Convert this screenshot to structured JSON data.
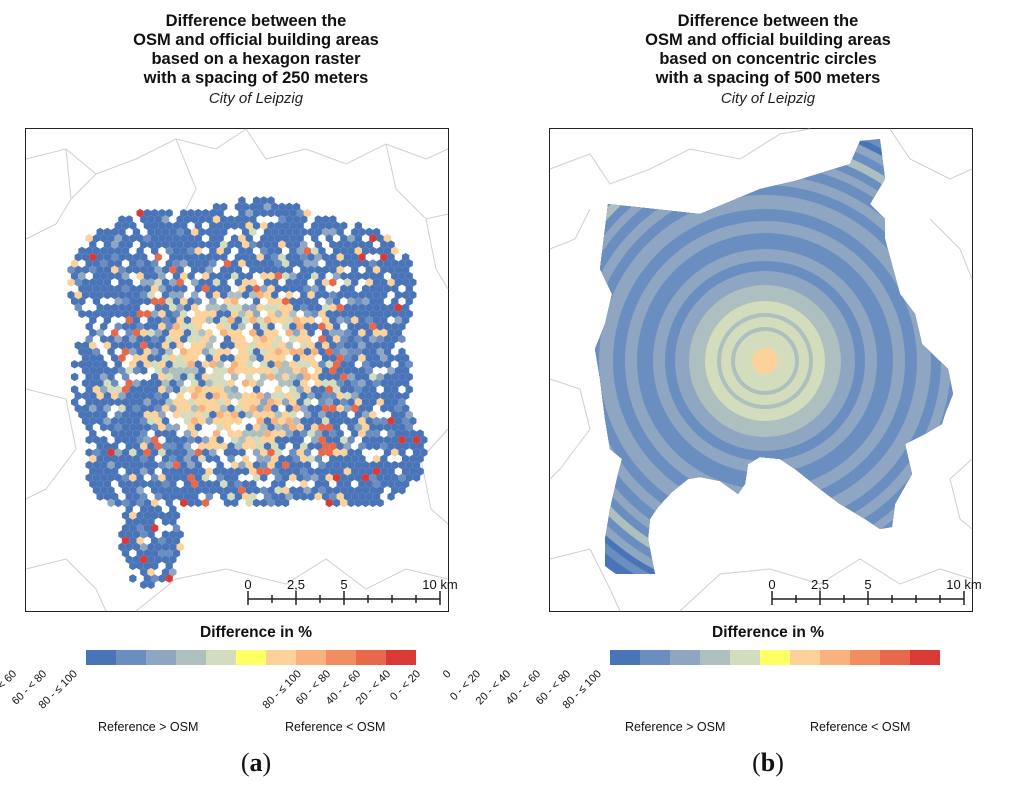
{
  "panels": [
    {
      "id": "a",
      "title_lines": [
        "Difference between the",
        "OSM and official building areas",
        "based on a hexagon raster",
        "with a spacing of 250 meters"
      ],
      "subtitle": "City of Leipzig",
      "label": "a"
    },
    {
      "id": "b",
      "title_lines": [
        "Difference between the",
        "OSM and official building areas",
        "based on concentric circles",
        "with a spacing of 500 meters"
      ],
      "subtitle": "City of Leipzig",
      "label": "b"
    }
  ],
  "scalebar": {
    "labels": [
      "0",
      "2,5",
      "5",
      "10 km"
    ],
    "values_km": [
      0,
      2.5,
      5,
      10
    ]
  },
  "legend": {
    "title": "Difference in %",
    "classes": [
      {
        "label": "80 - ≤ 100",
        "color": "#4a74b8"
      },
      {
        "label": "60 - < 80",
        "color": "#6b8ec0"
      },
      {
        "label": "40 - < 60",
        "color": "#8ea6c2"
      },
      {
        "label": "20 - < 40",
        "color": "#adbfbe"
      },
      {
        "label": "0 - < 20",
        "color": "#d3dcbd"
      },
      {
        "label": "0",
        "color": "#ffff66"
      },
      {
        "label": "0 - < 20",
        "color": "#fcd29a"
      },
      {
        "label": "20 - < 40",
        "color": "#f7b27e"
      },
      {
        "label": "40 - < 60",
        "color": "#f08e62"
      },
      {
        "label": "60 - < 80",
        "color": "#e8684c"
      },
      {
        "label": "80 - ≤ 100",
        "color": "#d93a36"
      }
    ],
    "left_label": "Reference > OSM",
    "right_label": "Reference < OSM"
  },
  "colors": {
    "boundary": "#cfcfcf",
    "frame": "#222222",
    "circle_bands": [
      "#fcd29a",
      "#d3dcbd",
      "#adbfbe",
      "#8ea6c2",
      "#6b8ec0",
      "#4a74b8"
    ]
  }
}
